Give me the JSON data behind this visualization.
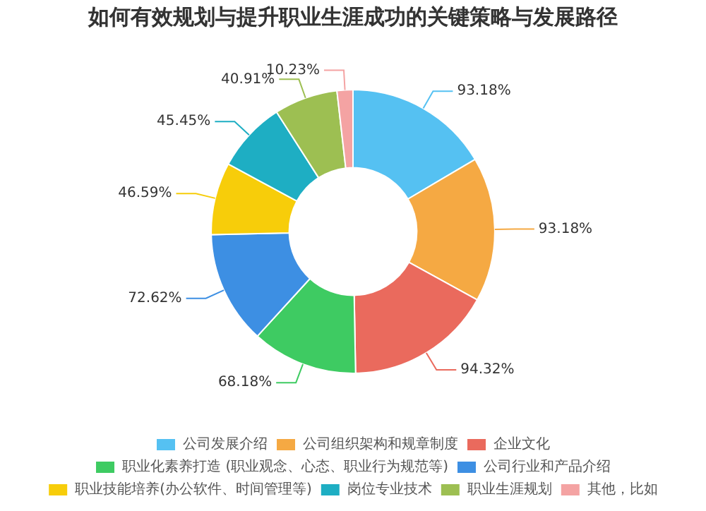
{
  "chart_data": {
    "type": "donut",
    "title": "如何有效规划与提升职业生涯成功的关键策略与发展路径",
    "categories": [
      "公司发展介绍",
      "公司组织架构和规章制度",
      "企业文化",
      "职业化素养打造 (职业观念、心态、职业行为规范等)",
      "公司行业和产品介绍",
      "职业技能培养(办公软件、时间管理等)",
      "岗位专业技术",
      "职业生涯规划",
      "其他，比如"
    ],
    "values": [
      93.18,
      93.18,
      94.32,
      68.18,
      72.62,
      46.59,
      45.45,
      40.91,
      10.23
    ],
    "colors": [
      "#55c1f2",
      "#f5a943",
      "#ea6a5d",
      "#3ecb62",
      "#3d8fe3",
      "#f7cd0a",
      "#1eaec3",
      "#9dbf52",
      "#f4a3a3"
    ],
    "value_labels": [
      "93.18%",
      "93.18%",
      "94.32%",
      "68.18%",
      "72.62%",
      "46.59%",
      "45.45%",
      "40.91%",
      "10.23%"
    ],
    "legend": "bottom"
  }
}
